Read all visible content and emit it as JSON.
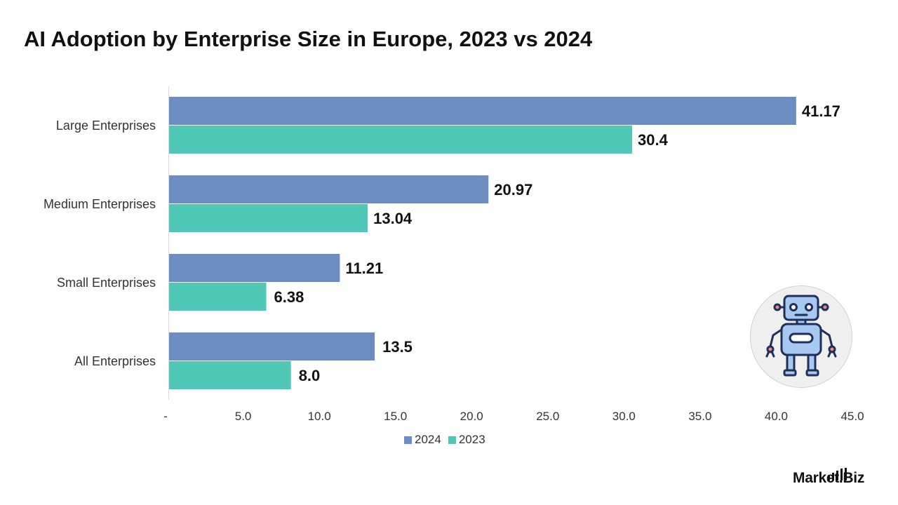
{
  "title": "AI Adoption by Enterprise Size in Europe, 2023 vs 2024",
  "chart_data": {
    "type": "bar",
    "orientation": "horizontal",
    "title": "AI Adoption by Enterprise Size in Europe, 2023 vs 2024",
    "categories": [
      "Large Enterprises",
      "Medium Enterprises",
      "Small Enterprises",
      "All Enterprises"
    ],
    "series": [
      {
        "name": "2024",
        "values": [
          41.17,
          20.97,
          11.21,
          13.5
        ],
        "labels": [
          "41.17",
          "20.97",
          "11.21",
          "13.5"
        ],
        "color": "#6d8cc2"
      },
      {
        "name": "2023",
        "values": [
          30.4,
          13.04,
          6.38,
          8.0
        ],
        "labels": [
          "30.4",
          "13.04",
          "6.38",
          "8.0"
        ],
        "color": "#4fc8b8"
      }
    ],
    "xlim": [
      0,
      45
    ],
    "x_ticks": [
      "-",
      "5.0",
      "10.0",
      "15.0",
      "20.0",
      "25.0",
      "30.0",
      "35.0",
      "40.0",
      "45.0"
    ],
    "xlabel": "",
    "ylabel": "",
    "grid": false,
    "legend_position": "bottom"
  },
  "legend": {
    "items": [
      "2024",
      "2023"
    ]
  },
  "branding": {
    "text": "Market.Biz",
    "icon": "robot-icon"
  }
}
